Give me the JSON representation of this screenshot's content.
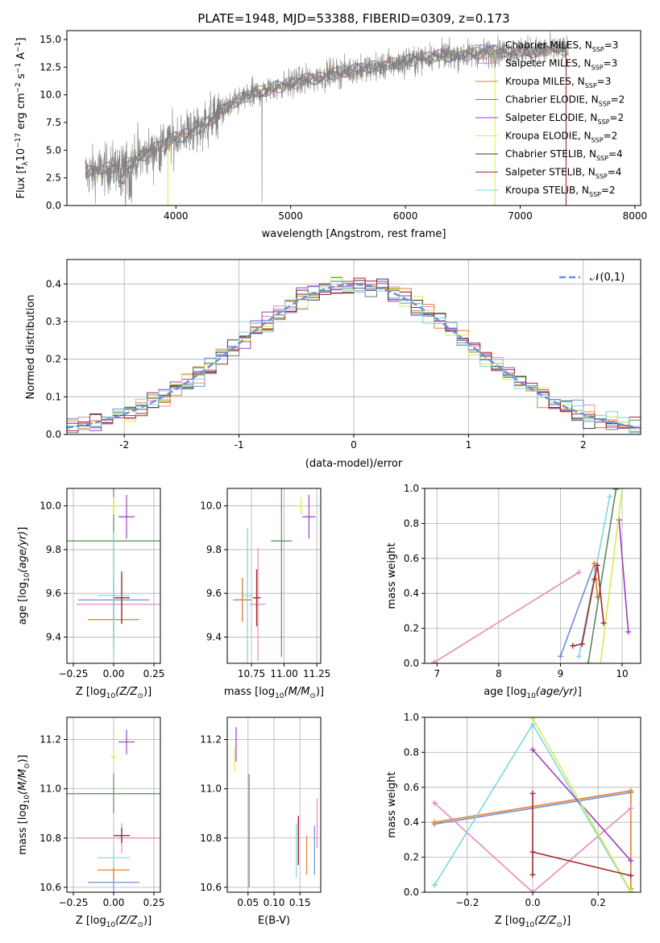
{
  "chart_data": [
    {
      "type": "line",
      "title": "PLATE=1948, MJD=53388, FIBERID=0309, z=0.173",
      "xlabel": "wavelength [Angstrom, rest frame]",
      "ylabel_parts": [
        "Flux [f",
        "λ",
        "10",
        "−17",
        " erg cm",
        "−2",
        " s",
        "−1",
        " A",
        "−1",
        "]"
      ],
      "xlim": [
        3050,
        8050
      ],
      "ylim": [
        0,
        15.8
      ],
      "xticks": [
        4000,
        5000,
        6000,
        7000,
        8000
      ],
      "yticks": [
        0.0,
        2.5,
        5.0,
        7.5,
        10.0,
        12.5,
        15.0
      ],
      "grid": false,
      "legend_position": "right",
      "series": [
        {
          "label": "Chabrier MILES, N",
          "sub": "SSP",
          "suffix": "=3",
          "color": "#6f8fd6"
        },
        {
          "label": "Salpeter MILES, N",
          "sub": "SSP",
          "suffix": "=3",
          "color": "#e989b8"
        },
        {
          "label": "Kroupa MILES, N",
          "sub": "SSP",
          "suffix": "=3",
          "color": "#e2802b"
        },
        {
          "label": "Chabrier ELODIE, N",
          "sub": "SSP",
          "suffix": "=2",
          "color": "#5c8a5c"
        },
        {
          "label": "Salpeter ELODIE, N",
          "sub": "SSP",
          "suffix": "=2",
          "color": "#9f3fbf"
        },
        {
          "label": "Kroupa ELODIE, N",
          "sub": "SSP",
          "suffix": "=2",
          "color": "#d4ee4e"
        },
        {
          "label": "Chabrier STELIB, N",
          "sub": "SSP",
          "suffix": "=4",
          "color": "#3a3a3a"
        },
        {
          "label": "Salpeter STELIB, N",
          "sub": "SSP",
          "suffix": "=4",
          "color": "#a52a2a"
        },
        {
          "label": "Kroupa STELIB, N",
          "sub": "SSP",
          "suffix": "=2",
          "color": "#7dd6e0"
        }
      ],
      "data_color": "#808080",
      "continuum_points": [
        [
          3200,
          2.9
        ],
        [
          3400,
          3.3
        ],
        [
          3600,
          3.9
        ],
        [
          3800,
          5.0
        ],
        [
          4000,
          6.1
        ],
        [
          4200,
          7.0
        ],
        [
          4400,
          8.5
        ],
        [
          4600,
          9.8
        ],
        [
          4800,
          10.5
        ],
        [
          5000,
          11.0
        ],
        [
          5200,
          11.5
        ],
        [
          5400,
          12.0
        ],
        [
          5600,
          12.3
        ],
        [
          5800,
          12.6
        ],
        [
          6000,
          13.0
        ],
        [
          6200,
          13.4
        ],
        [
          6400,
          13.6
        ],
        [
          6600,
          13.7
        ],
        [
          6800,
          13.9
        ],
        [
          7000,
          13.9
        ],
        [
          7200,
          14.0
        ],
        [
          7400,
          14.1
        ]
      ]
    },
    {
      "type": "histogram",
      "xlabel": "(data-model)/error",
      "ylabel": "Normed distribution",
      "xlim": [
        -2.5,
        2.5
      ],
      "ylim": [
        0,
        0.465
      ],
      "xticks": [
        -2,
        -1,
        0,
        1,
        2
      ],
      "yticks": [
        0.0,
        0.1,
        0.2,
        0.3,
        0.4
      ],
      "grid": true,
      "legend": {
        "label": "𝒩(0,1)",
        "position": "top-right",
        "color": "#6f8fd6"
      },
      "bin_width": 0.1,
      "x_start": -2.5
    },
    {
      "type": "errorbar",
      "xlabel": "Z [log",
      "ylabel": "age  [log",
      "xlim": [
        -0.29,
        0.29
      ],
      "ylim": [
        9.28,
        10.08
      ],
      "xticks": [
        -0.25,
        0.0,
        0.25
      ],
      "xtick_labels": [
        "−0.25",
        "0.00",
        "0.25"
      ],
      "yticks": [
        9.4,
        9.6,
        9.8,
        10.0
      ],
      "points": [
        {
          "x": 0.0,
          "y": 9.57,
          "xe": 0.22,
          "ye": 0.1,
          "color": "#6f8fd6"
        },
        {
          "x": 0.05,
          "y": 9.55,
          "xe": 0.28,
          "ye": 0.06,
          "color": "#e989b8"
        },
        {
          "x": 0.0,
          "y": 9.48,
          "xe": 0.16,
          "ye": 0.1,
          "color": "#e2802b"
        },
        {
          "x": 0.0,
          "y": 9.84,
          "xe": 0.3,
          "ye": 0.5,
          "color": "#5c8a5c"
        },
        {
          "x": 0.08,
          "y": 9.95,
          "xe": 0.05,
          "ye": 0.1,
          "color": "#9f3fbf"
        },
        {
          "x": 0.0,
          "y": 10.0,
          "xe": 0.02,
          "ye": 0.04,
          "color": "#d4ee4e"
        },
        {
          "x": 0.05,
          "y": 9.58,
          "xe": 0.05,
          "ye": 0.12,
          "color": "#3a3a3a"
        },
        {
          "x": 0.05,
          "y": 9.58,
          "xe": 0.05,
          "ye": 0.12,
          "color": "#a52a2a"
        },
        {
          "x": 0.0,
          "y": 9.59,
          "xe": 0.1,
          "ye": 0.29,
          "color": "#7dd6e0"
        }
      ]
    },
    {
      "type": "errorbar",
      "xlabel": "mass [log",
      "ylabel": "",
      "xlim": [
        10.565,
        11.28
      ],
      "ylim": [
        9.28,
        10.08
      ],
      "xticks": [
        10.75,
        11.0,
        11.25
      ],
      "xtick_labels": [
        "10.75",
        "11.00",
        "11.25"
      ],
      "yticks": [
        9.4,
        9.6,
        9.8,
        10.0
      ],
      "points": [
        {
          "x": 10.68,
          "y": 9.57,
          "xe": 0.07,
          "ye": 0.1,
          "color": "#6f8fd6"
        },
        {
          "x": 10.8,
          "y": 9.55,
          "xe": 0.06,
          "ye": 0.26,
          "color": "#e989b8"
        },
        {
          "x": 10.68,
          "y": 9.57,
          "xe": 0.06,
          "ye": 0.1,
          "color": "#e2802b"
        },
        {
          "x": 10.98,
          "y": 9.84,
          "xe": 0.08,
          "ye": 0.53,
          "color": "#5c8a5c"
        },
        {
          "x": 11.19,
          "y": 9.95,
          "xe": 0.05,
          "ye": 0.1,
          "color": "#9f3fbf"
        },
        {
          "x": 11.13,
          "y": 10.0,
          "xe": 0.03,
          "ye": 0.04,
          "color": "#d4ee4e"
        },
        {
          "x": 10.79,
          "y": 9.58,
          "xe": 0.03,
          "ye": 0.13,
          "color": "#3a3a3a"
        },
        {
          "x": 10.79,
          "y": 9.58,
          "xe": 0.03,
          "ye": 0.13,
          "color": "#a52a2a"
        },
        {
          "x": 10.72,
          "y": 9.59,
          "xe": 0.04,
          "ye": 0.31,
          "color": "#7dd6e0"
        }
      ]
    },
    {
      "type": "line",
      "xlabel": "age  [log",
      "ylabel": "mass weight",
      "xlim": [
        6.8,
        10.3
      ],
      "ylim": [
        0,
        1.0
      ],
      "xticks": [
        7,
        8,
        9,
        10
      ],
      "yticks": [
        0.0,
        0.2,
        0.4,
        0.6,
        0.8,
        1.0
      ],
      "grid": true,
      "series": [
        {
          "color": "#e989b8",
          "points": [
            [
              6.95,
              0.005
            ],
            [
              9.3,
              0.52
            ]
          ]
        },
        {
          "color": "#6f8fd6",
          "points": [
            [
              9.0,
              0.04
            ],
            [
              9.55,
              0.57
            ]
          ]
        },
        {
          "color": "#e2802b",
          "points": [
            [
              9.55,
              0.57
            ],
            [
              9.6,
              0.38
            ]
          ]
        },
        {
          "color": "#5c8a5c",
          "points": [
            [
              9.45,
              0.0
            ],
            [
              9.9,
              0.995
            ]
          ]
        },
        {
          "color": "#9f3fbf",
          "points": [
            [
              9.95,
              0.82
            ],
            [
              10.1,
              0.18
            ]
          ]
        },
        {
          "color": "#d4ee4e",
          "points": [
            [
              9.65,
              0.0
            ],
            [
              10.0,
              1.0
            ]
          ]
        },
        {
          "color": "#7dd6e0",
          "points": [
            [
              9.3,
              0.04
            ],
            [
              9.8,
              0.955
            ]
          ]
        },
        {
          "color": "#a52a2a",
          "points": [
            [
              9.2,
              0.1
            ],
            [
              9.35,
              0.11
            ],
            [
              9.55,
              0.48
            ],
            [
              9.6,
              0.56
            ],
            [
              9.7,
              0.23
            ]
          ]
        }
      ]
    },
    {
      "type": "errorbar",
      "xlabel": "Z [log",
      "ylabel": "mass [log",
      "xlim": [
        -0.29,
        0.29
      ],
      "ylim": [
        10.58,
        11.29
      ],
      "xticks": [
        -0.25,
        0.0,
        0.25
      ],
      "xtick_labels": [
        "−0.25",
        "0.00",
        "0.25"
      ],
      "yticks": [
        10.6,
        10.8,
        11.0,
        11.2
      ],
      "points": [
        {
          "x": 0.0,
          "y": 10.62,
          "xe": 0.16,
          "ye": 0.06,
          "color": "#6f8fd6"
        },
        {
          "x": 0.05,
          "y": 10.8,
          "xe": 0.28,
          "ye": 0.06,
          "color": "#e989b8"
        },
        {
          "x": 0.0,
          "y": 10.67,
          "xe": 0.1,
          "ye": 0.04,
          "color": "#e2802b"
        },
        {
          "x": 0.0,
          "y": 10.98,
          "xe": 0.29,
          "ye": 0.08,
          "color": "#5c8a5c"
        },
        {
          "x": 0.08,
          "y": 11.19,
          "xe": 0.05,
          "ye": 0.05,
          "color": "#9f3fbf"
        },
        {
          "x": 0.0,
          "y": 11.13,
          "xe": 0.02,
          "ye": 0.03,
          "color": "#d4ee4e"
        },
        {
          "x": 0.05,
          "y": 10.81,
          "xe": 0.05,
          "ye": 0.03,
          "color": "#3a3a3a"
        },
        {
          "x": 0.05,
          "y": 10.81,
          "xe": 0.05,
          "ye": 0.03,
          "color": "#a52a2a"
        },
        {
          "x": 0.0,
          "y": 10.72,
          "xe": 0.1,
          "ye": 0.04,
          "color": "#7dd6e0"
        }
      ]
    },
    {
      "type": "errorbar",
      "xlabel": "E(B-V)",
      "ylabel": "",
      "xlim": [
        0.01,
        0.19
      ],
      "ylim": [
        10.58,
        11.29
      ],
      "xticks": [
        0.05,
        0.1,
        0.15
      ],
      "xtick_labels": [
        "0.05",
        "0.10",
        "0.15"
      ],
      "yticks": [
        10.6,
        10.8,
        11.0,
        11.2
      ],
      "points": [
        {
          "x": 0.178,
          "y": 10.75,
          "xe": 0.0,
          "ye": 0.1,
          "color": "#6f8fd6"
        },
        {
          "x": 0.183,
          "y": 10.86,
          "xe": 0.0,
          "ye": 0.1,
          "color": "#e989b8"
        },
        {
          "x": 0.163,
          "y": 10.73,
          "xe": 0.0,
          "ye": 0.08,
          "color": "#e2802b"
        },
        {
          "x": 0.052,
          "y": 10.83,
          "xe": 0.0,
          "ye": 0.23,
          "color": "#5c8a5c"
        },
        {
          "x": 0.027,
          "y": 11.18,
          "xe": 0.0,
          "ye": 0.07,
          "color": "#9f3fbf"
        },
        {
          "x": 0.024,
          "y": 11.12,
          "xe": 0.0,
          "ye": 0.05,
          "color": "#d4ee4e"
        },
        {
          "x": 0.147,
          "y": 10.79,
          "xe": 0.0,
          "ye": 0.1,
          "color": "#3a3a3a"
        },
        {
          "x": 0.147,
          "y": 10.79,
          "xe": 0.0,
          "ye": 0.1,
          "color": "#a52a2a"
        },
        {
          "x": 0.143,
          "y": 10.75,
          "xe": 0.0,
          "ye": 0.11,
          "color": "#7dd6e0"
        }
      ]
    },
    {
      "type": "line",
      "xlabel": "Z [log",
      "ylabel": "mass weight",
      "xlim": [
        -0.33,
        0.33
      ],
      "ylim": [
        0,
        1.0
      ],
      "xticks": [
        -0.2,
        0.0,
        0.2
      ],
      "xtick_labels": [
        "−0.2",
        "0.0",
        "0.2"
      ],
      "yticks": [
        0.0,
        0.2,
        0.4,
        0.6,
        0.8,
        1.0
      ],
      "grid": true,
      "series": [
        {
          "color": "#6f8fd6",
          "points": [
            [
              -0.3,
              0.39
            ],
            [
              0.3,
              0.57
            ]
          ]
        },
        {
          "color": "#e2802b",
          "points": [
            [
              -0.3,
              0.4
            ],
            [
              0.3,
              0.58
            ],
            [
              0.3,
              0.02
            ]
          ]
        },
        {
          "color": "#e989b8",
          "points": [
            [
              -0.3,
              0.51
            ],
            [
              0.0,
              0.0
            ],
            [
              0.3,
              0.48
            ]
          ]
        },
        {
          "color": "#7dd6e0",
          "points": [
            [
              -0.3,
              0.04
            ],
            [
              0.0,
              0.96
            ],
            [
              0.3,
              0.0
            ]
          ]
        },
        {
          "color": "#9f3fbf",
          "points": [
            [
              0.0,
              0.815
            ],
            [
              0.3,
              0.18
            ]
          ]
        },
        {
          "color": "#d4ee4e",
          "points": [
            [
              0.0,
              0.995
            ],
            [
              0.3,
              0.005
            ]
          ]
        },
        {
          "color": "#a52a2a",
          "points": [
            [
              0.0,
              0.565
            ],
            [
              0.0,
              0.1
            ],
            [
              0.0,
              0.23
            ],
            [
              0.3,
              0.095
            ]
          ]
        }
      ]
    }
  ],
  "labels": {
    "log10_sub": "10",
    "z_sun_frac": "(Z/Z",
    "m_sun_frac": "(M/M",
    "age_unit": "(age/yr)",
    "sun": "⊙",
    "close_paren": ")]",
    "close_bracket": "]"
  }
}
